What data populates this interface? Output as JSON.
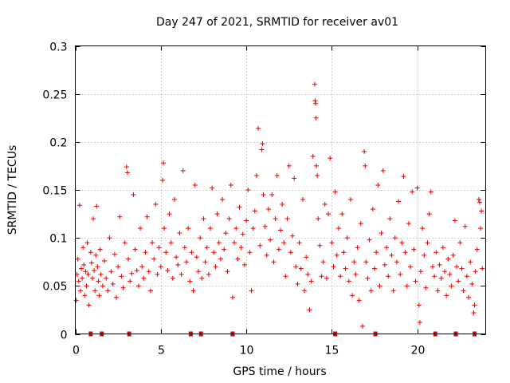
{
  "chart_data": {
    "type": "scatter",
    "title": "Day 247 of 2021, SRMTID for receiver av01",
    "xlabel": "GPS time / hours",
    "ylabel": "SRMTID / TECUs",
    "xlim": [
      0,
      24
    ],
    "ylim": [
      0,
      0.3
    ],
    "xticks": [
      0,
      5,
      10,
      15,
      20
    ],
    "xtick_labels": [
      "0",
      "5",
      "10",
      "15",
      "20"
    ],
    "yticks": [
      0,
      0.05,
      0.1,
      0.15,
      0.2,
      0.25,
      0.3
    ],
    "ytick_labels": [
      "0",
      "0.05",
      "0.1",
      "0.15",
      "0.2",
      "0.25",
      "0.3"
    ],
    "grid": true,
    "marker": "plus",
    "color": "#e00000",
    "series": [
      {
        "name": "SRMTID",
        "points": [
          [
            0.05,
            0.035
          ],
          [
            0.1,
            0.062
          ],
          [
            0.15,
            0.078
          ],
          [
            0.2,
            0.055
          ],
          [
            0.25,
            0.134
          ],
          [
            0.3,
            0.045
          ],
          [
            0.35,
            0.068
          ],
          [
            0.4,
            0.058
          ],
          [
            0.45,
            0.09
          ],
          [
            0.5,
            0.072
          ],
          [
            0.55,
            0.04
          ],
          [
            0.6,
            0.065
          ],
          [
            0.65,
            0.05
          ],
          [
            0.7,
            0.095
          ],
          [
            0.75,
            0.062
          ],
          [
            0.8,
            0.03
          ],
          [
            0.9,
            0.085
          ],
          [
            0.95,
            0.074
          ],
          [
            1.0,
            0.058
          ],
          [
            1.05,
            0.12
          ],
          [
            1.1,
            0.066
          ],
          [
            1.15,
            0.045
          ],
          [
            1.2,
            0.082
          ],
          [
            1.25,
            0.133
          ],
          [
            1.3,
            0.07
          ],
          [
            1.35,
            0.055
          ],
          [
            1.4,
            0.04
          ],
          [
            1.45,
            0.088
          ],
          [
            1.5,
            0.062
          ],
          [
            1.6,
            0.05
          ],
          [
            1.7,
            0.076
          ],
          [
            1.8,
            0.058
          ],
          [
            1.9,
            0.045
          ],
          [
            2.0,
            0.1
          ],
          [
            2.1,
            0.065
          ],
          [
            2.2,
            0.052
          ],
          [
            2.3,
            0.083
          ],
          [
            2.4,
            0.038
          ],
          [
            2.5,
            0.07
          ],
          [
            2.6,
            0.122
          ],
          [
            2.7,
            0.06
          ],
          [
            2.8,
            0.048
          ],
          [
            2.9,
            0.095
          ],
          [
            3.0,
            0.174
          ],
          [
            3.05,
            0.168
          ],
          [
            3.1,
            0.078
          ],
          [
            3.2,
            0.055
          ],
          [
            3.3,
            0.063
          ],
          [
            3.4,
            0.145
          ],
          [
            3.5,
            0.088
          ],
          [
            3.6,
            0.066
          ],
          [
            3.7,
            0.05
          ],
          [
            3.8,
            0.11
          ],
          [
            3.9,
            0.07
          ],
          [
            4.0,
            0.058
          ],
          [
            4.1,
            0.085
          ],
          [
            4.2,
            0.122
          ],
          [
            4.3,
            0.065
          ],
          [
            4.4,
            0.045
          ],
          [
            4.5,
            0.095
          ],
          [
            4.6,
            0.078
          ],
          [
            4.7,
            0.135
          ],
          [
            4.8,
            0.062
          ],
          [
            4.9,
            0.09
          ],
          [
            5.0,
            0.07
          ],
          [
            5.1,
            0.16
          ],
          [
            5.15,
            0.178
          ],
          [
            5.2,
            0.11
          ],
          [
            5.3,
            0.085
          ],
          [
            5.4,
            0.066
          ],
          [
            5.5,
            0.125
          ],
          [
            5.6,
            0.095
          ],
          [
            5.7,
            0.058
          ],
          [
            5.8,
            0.14
          ],
          [
            5.9,
            0.08
          ],
          [
            6.0,
            0.072
          ],
          [
            6.1,
            0.105
          ],
          [
            6.2,
            0.062
          ],
          [
            6.3,
            0.17
          ],
          [
            6.4,
            0.09
          ],
          [
            6.5,
            0.075
          ],
          [
            6.6,
            0.11
          ],
          [
            6.7,
            0.055
          ],
          [
            6.8,
            0.085
          ],
          [
            6.9,
            0.045
          ],
          [
            7.0,
            0.155
          ],
          [
            7.1,
            0.08
          ],
          [
            7.2,
            0.065
          ],
          [
            7.3,
            0.1
          ],
          [
            7.4,
            0.058
          ],
          [
            7.5,
            0.12
          ],
          [
            7.6,
            0.075
          ],
          [
            7.7,
            0.09
          ],
          [
            7.8,
            0.062
          ],
          [
            7.9,
            0.11
          ],
          [
            8.0,
            0.152
          ],
          [
            8.1,
            0.085
          ],
          [
            8.2,
            0.07
          ],
          [
            8.3,
            0.125
          ],
          [
            8.4,
            0.095
          ],
          [
            8.5,
            0.078
          ],
          [
            8.6,
            0.14
          ],
          [
            8.7,
            0.088
          ],
          [
            8.8,
            0.105
          ],
          [
            8.9,
            0.065
          ],
          [
            9.0,
            0.12
          ],
          [
            9.1,
            0.155
          ],
          [
            9.2,
            0.038
          ],
          [
            9.3,
            0.095
          ],
          [
            9.4,
            0.11
          ],
          [
            9.5,
            0.078
          ],
          [
            9.6,
            0.132
          ],
          [
            9.7,
            0.09
          ],
          [
            9.8,
            0.104
          ],
          [
            9.9,
            0.072
          ],
          [
            10.0,
            0.118
          ],
          [
            10.1,
            0.15
          ],
          [
            10.2,
            0.085
          ],
          [
            10.3,
            0.045
          ],
          [
            10.4,
            0.11
          ],
          [
            10.5,
            0.128
          ],
          [
            10.6,
            0.165
          ],
          [
            10.7,
            0.214
          ],
          [
            10.8,
            0.092
          ],
          [
            10.9,
            0.192
          ],
          [
            10.95,
            0.198
          ],
          [
            11.0,
            0.145
          ],
          [
            11.1,
            0.112
          ],
          [
            11.2,
            0.082
          ],
          [
            11.3,
            0.13
          ],
          [
            11.4,
            0.098
          ],
          [
            11.5,
            0.145
          ],
          [
            11.6,
            0.075
          ],
          [
            11.7,
            0.12
          ],
          [
            11.8,
            0.165
          ],
          [
            11.9,
            0.088
          ],
          [
            12.0,
            0.108
          ],
          [
            12.1,
            0.135
          ],
          [
            12.2,
            0.095
          ],
          [
            12.3,
            0.06
          ],
          [
            12.4,
            0.12
          ],
          [
            12.5,
            0.175
          ],
          [
            12.6,
            0.085
          ],
          [
            12.7,
            0.102
          ],
          [
            12.8,
            0.162
          ],
          [
            12.9,
            0.07
          ],
          [
            13.0,
            0.052
          ],
          [
            13.1,
            0.095
          ],
          [
            13.2,
            0.068
          ],
          [
            13.3,
            0.14
          ],
          [
            13.4,
            0.045
          ],
          [
            13.5,
            0.08
          ],
          [
            13.6,
            0.062
          ],
          [
            13.7,
            0.025
          ],
          [
            13.8,
            0.055
          ],
          [
            13.9,
            0.185
          ],
          [
            14.0,
            0.26
          ],
          [
            14.02,
            0.243
          ],
          [
            14.05,
            0.24
          ],
          [
            14.08,
            0.225
          ],
          [
            14.1,
            0.175
          ],
          [
            14.15,
            0.165
          ],
          [
            14.2,
            0.12
          ],
          [
            14.3,
            0.092
          ],
          [
            14.4,
            0.06
          ],
          [
            14.5,
            0.075
          ],
          [
            14.6,
            0.135
          ],
          [
            14.7,
            0.058
          ],
          [
            14.8,
            0.125
          ],
          [
            14.9,
            0.183
          ],
          [
            15.0,
            0.095
          ],
          [
            15.1,
            0.07
          ],
          [
            15.2,
            0.148
          ],
          [
            15.3,
            0.082
          ],
          [
            15.4,
            0.11
          ],
          [
            15.5,
            0.06
          ],
          [
            15.6,
            0.125
          ],
          [
            15.7,
            0.085
          ],
          [
            15.8,
            0.068
          ],
          [
            15.9,
            0.1
          ],
          [
            16.0,
            0.055
          ],
          [
            16.1,
            0.14
          ],
          [
            16.2,
            0.04
          ],
          [
            16.3,
            0.075
          ],
          [
            16.4,
            0.062
          ],
          [
            16.5,
            0.09
          ],
          [
            16.6,
            0.035
          ],
          [
            16.7,
            0.115
          ],
          [
            16.8,
            0.008
          ],
          [
            16.9,
            0.19
          ],
          [
            16.95,
            0.175
          ],
          [
            17.0,
            0.075
          ],
          [
            17.1,
            0.058
          ],
          [
            17.2,
            0.098
          ],
          [
            17.3,
            0.045
          ],
          [
            17.4,
            0.13
          ],
          [
            17.5,
            0.068
          ],
          [
            17.6,
            0.085
          ],
          [
            17.7,
            0.155
          ],
          [
            17.8,
            0.05
          ],
          [
            17.9,
            0.105
          ],
          [
            18.0,
            0.17
          ],
          [
            18.1,
            0.072
          ],
          [
            18.2,
            0.09
          ],
          [
            18.3,
            0.06
          ],
          [
            18.4,
            0.12
          ],
          [
            18.5,
            0.082
          ],
          [
            18.6,
            0.045
          ],
          [
            18.7,
            0.1
          ],
          [
            18.8,
            0.075
          ],
          [
            18.9,
            0.138
          ],
          [
            19.0,
            0.062
          ],
          [
            19.1,
            0.095
          ],
          [
            19.2,
            0.164
          ],
          [
            19.3,
            0.085
          ],
          [
            19.4,
            0.05
          ],
          [
            19.5,
            0.115
          ],
          [
            19.6,
            0.07
          ],
          [
            19.7,
            0.148
          ],
          [
            19.8,
            0.088
          ],
          [
            19.9,
            0.055
          ],
          [
            20.0,
            0.152
          ],
          [
            20.1,
            0.03
          ],
          [
            20.15,
            0.012
          ],
          [
            20.2,
            0.065
          ],
          [
            20.3,
            0.11
          ],
          [
            20.4,
            0.082
          ],
          [
            20.5,
            0.048
          ],
          [
            20.6,
            0.095
          ],
          [
            20.7,
            0.125
          ],
          [
            20.8,
            0.148
          ],
          [
            20.9,
            0.07
          ],
          [
            21.0,
            0.06
          ],
          [
            21.1,
            0.085
          ],
          [
            21.2,
            0.045
          ],
          [
            21.3,
            0.072
          ],
          [
            21.4,
            0.058
          ],
          [
            21.5,
            0.09
          ],
          [
            21.6,
            0.065
          ],
          [
            21.7,
            0.04
          ],
          [
            21.8,
            0.078
          ],
          [
            21.9,
            0.062
          ],
          [
            22.0,
            0.05
          ],
          [
            22.1,
            0.082
          ],
          [
            22.2,
            0.118
          ],
          [
            22.3,
            0.07
          ],
          [
            22.4,
            0.055
          ],
          [
            22.5,
            0.095
          ],
          [
            22.6,
            0.068
          ],
          [
            22.7,
            0.045
          ],
          [
            22.8,
            0.112
          ],
          [
            22.9,
            0.06
          ],
          [
            23.0,
            0.038
          ],
          [
            23.1,
            0.075
          ],
          [
            23.2,
            0.052
          ],
          [
            23.3,
            0.022
          ],
          [
            23.35,
            0.03
          ],
          [
            23.4,
            0.065
          ],
          [
            23.5,
            0.088
          ],
          [
            23.6,
            0.14
          ],
          [
            23.65,
            0.137
          ],
          [
            23.7,
            0.11
          ],
          [
            23.75,
            0.128
          ],
          [
            23.8,
            0.068
          ]
        ]
      }
    ],
    "gap_markers_hours": [
      0.9,
      1.55,
      3.15,
      6.75,
      7.35,
      9.2,
      15.2,
      17.55,
      21.05,
      22.25,
      23.35
    ]
  }
}
